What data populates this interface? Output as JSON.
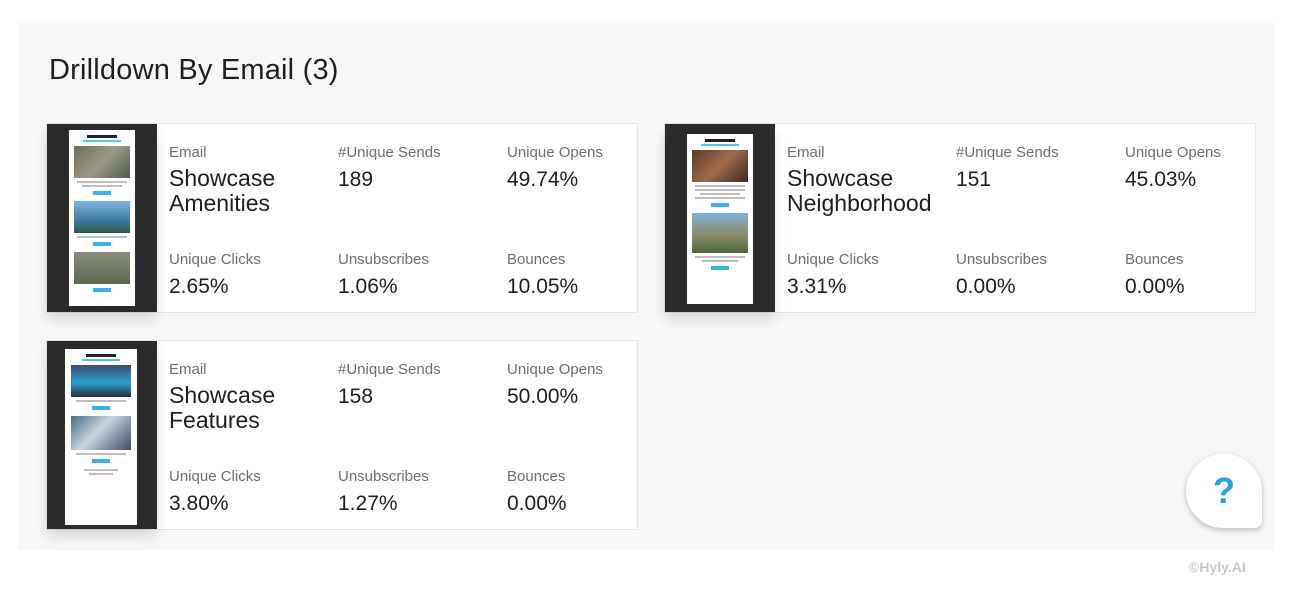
{
  "section": {
    "title": "Drilldown By Email (3)"
  },
  "labels": {
    "email": "Email",
    "sends": "#Unique Sends",
    "opens": "Unique Opens",
    "clicks": "Unique Clicks",
    "unsubscribes": "Unsubscribes",
    "bounces": "Bounces"
  },
  "cards": [
    {
      "name_line1": "Showcase",
      "name_line2": "Amenities",
      "unique_sends": "189",
      "unique_opens": "49.74%",
      "unique_clicks": "2.65%",
      "unsubscribes": "1.06%",
      "bounces": "10.05%"
    },
    {
      "name_line1": "Showcase",
      "name_line2": "Neighborhood",
      "unique_sends": "151",
      "unique_opens": "45.03%",
      "unique_clicks": "3.31%",
      "unsubscribes": "0.00%",
      "bounces": "0.00%"
    },
    {
      "name_line1": "Showcase",
      "name_line2": "Features",
      "unique_sends": "158",
      "unique_opens": "50.00%",
      "unique_clicks": "3.80%",
      "unsubscribes": "1.27%",
      "bounces": "0.00%"
    }
  ],
  "help": {
    "glyph": "?",
    "icon": "question-mark-icon",
    "color": "#29a3dd"
  },
  "footer": {
    "copyright": "©Hyly.AI"
  }
}
